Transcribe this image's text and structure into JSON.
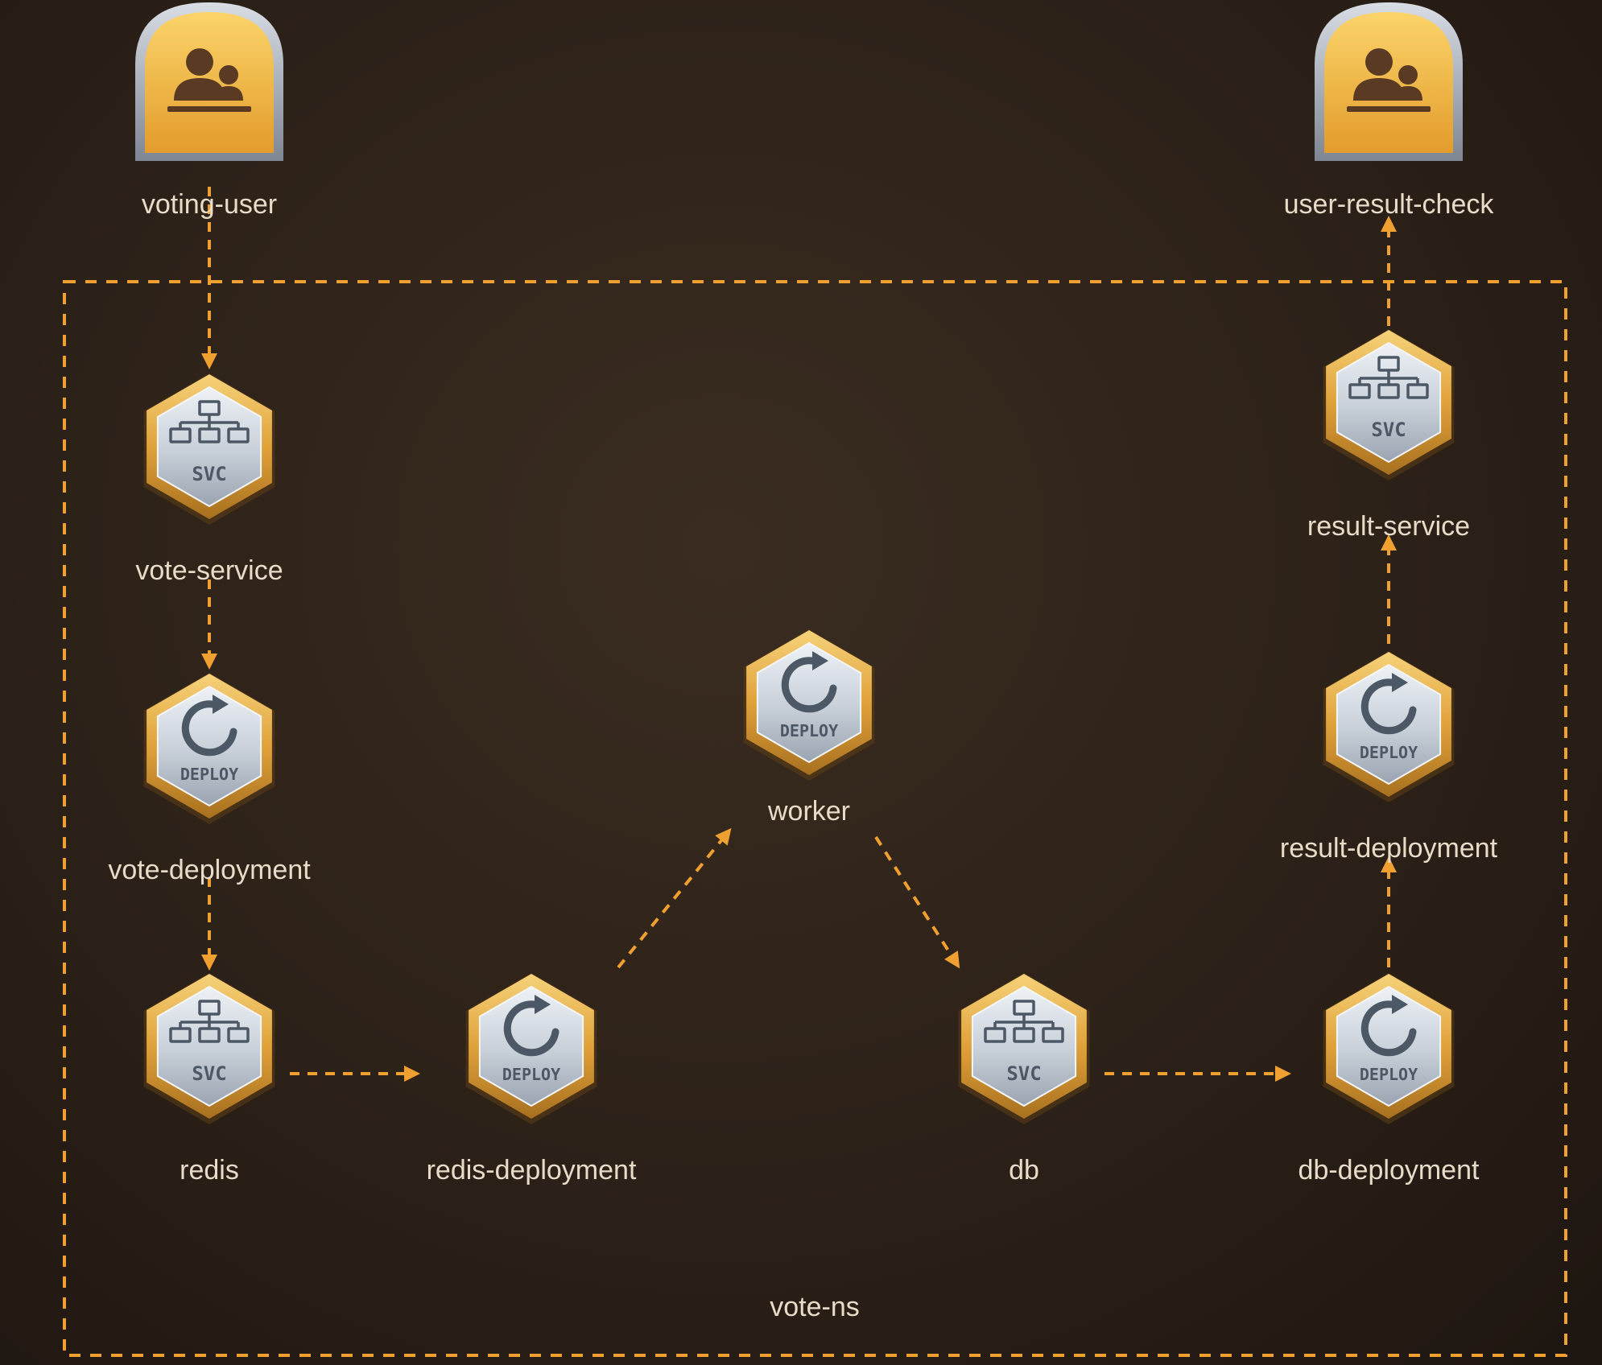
{
  "diagram": {
    "colors": {
      "background": "#2c2118",
      "edge": "#f0a030",
      "label": "#e8dcc8",
      "badge_gold": "#e8a93a",
      "badge_silver": "#c9d1da",
      "user_tile": "#f0b83a"
    },
    "group": {
      "label": "vote-ns",
      "style": "dashed-orange"
    },
    "nodes": [
      {
        "id": "voting-user",
        "label": "voting-user",
        "kind": "user",
        "icon": "user-group-icon"
      },
      {
        "id": "user-result-check",
        "label": "user-result-check",
        "kind": "user",
        "icon": "user-group-icon"
      },
      {
        "id": "vote-service",
        "label": "vote-service",
        "kind": "svc",
        "icon": "svc-icon",
        "badge": "SVC"
      },
      {
        "id": "vote-deployment",
        "label": "vote-deployment",
        "kind": "deploy",
        "icon": "deploy-icon",
        "badge": "DEPLOY"
      },
      {
        "id": "redis",
        "label": "redis",
        "kind": "svc",
        "icon": "svc-icon",
        "badge": "SVC"
      },
      {
        "id": "redis-deployment",
        "label": "redis-deployment",
        "kind": "deploy",
        "icon": "deploy-icon",
        "badge": "DEPLOY"
      },
      {
        "id": "worker",
        "label": "worker",
        "kind": "deploy",
        "icon": "deploy-icon",
        "badge": "DEPLOY"
      },
      {
        "id": "db",
        "label": "db",
        "kind": "svc",
        "icon": "svc-icon",
        "badge": "SVC"
      },
      {
        "id": "db-deployment",
        "label": "db-deployment",
        "kind": "deploy",
        "icon": "deploy-icon",
        "badge": "DEPLOY"
      },
      {
        "id": "result-deployment",
        "label": "result-deployment",
        "kind": "deploy",
        "icon": "deploy-icon",
        "badge": "DEPLOY"
      },
      {
        "id": "result-service",
        "label": "result-service",
        "kind": "svc",
        "icon": "svc-icon",
        "badge": "SVC"
      }
    ],
    "edges": [
      {
        "from": "voting-user",
        "to": "vote-service"
      },
      {
        "from": "vote-service",
        "to": "vote-deployment"
      },
      {
        "from": "vote-deployment",
        "to": "redis"
      },
      {
        "from": "redis",
        "to": "redis-deployment"
      },
      {
        "from": "redis-deployment",
        "to": "worker"
      },
      {
        "from": "worker",
        "to": "db"
      },
      {
        "from": "db",
        "to": "db-deployment"
      },
      {
        "from": "db-deployment",
        "to": "result-deployment"
      },
      {
        "from": "result-deployment",
        "to": "result-service"
      },
      {
        "from": "result-service",
        "to": "user-result-check"
      }
    ]
  }
}
